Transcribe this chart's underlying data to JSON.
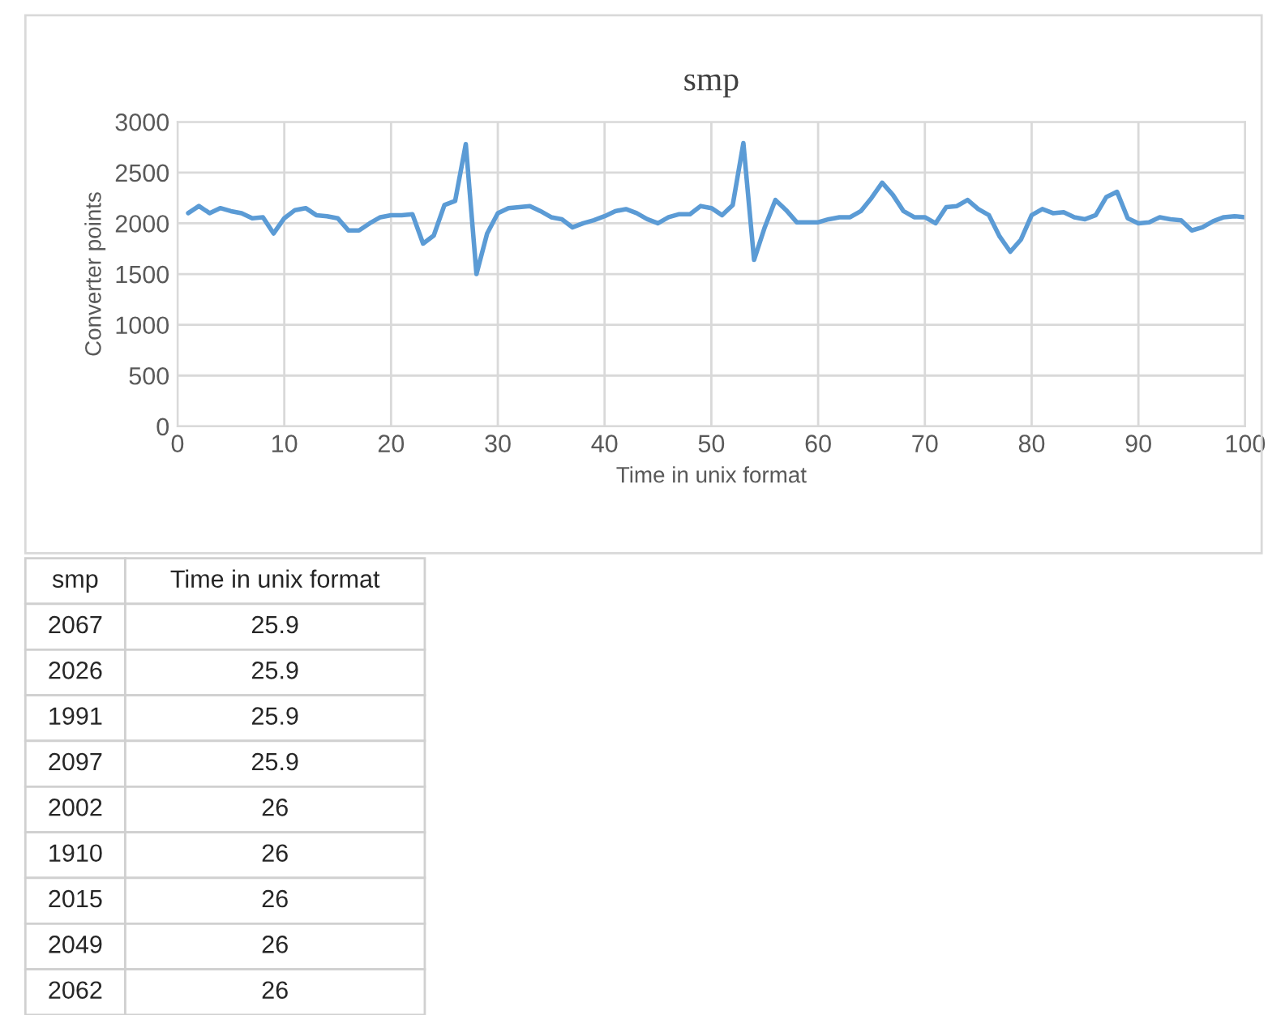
{
  "chart_data": [
    {
      "type": "line",
      "title": "smp",
      "xlabel": "Time in unix format",
      "ylabel": "Converter points",
      "x": [
        1,
        2,
        3,
        4,
        5,
        6,
        7,
        8,
        9,
        10,
        11,
        12,
        13,
        14,
        15,
        16,
        17,
        18,
        19,
        20,
        21,
        22,
        23,
        24,
        25,
        26,
        27,
        28,
        29,
        30,
        31,
        32,
        33,
        34,
        35,
        36,
        37,
        38,
        39,
        40,
        41,
        42,
        43,
        44,
        45,
        46,
        47,
        48,
        49,
        50,
        51,
        52,
        53,
        54,
        55,
        56,
        57,
        58,
        59,
        60,
        61,
        62,
        63,
        64,
        65,
        66,
        67,
        68,
        69,
        70,
        71,
        72,
        73,
        74,
        75,
        76,
        77,
        78,
        79,
        80,
        81,
        82,
        83,
        84,
        85,
        86,
        87,
        88,
        89,
        90,
        91,
        92,
        93,
        94,
        95,
        96,
        97,
        98,
        99,
        100
      ],
      "series": [
        {
          "color": "#5b9bd5",
          "values": [
            2100,
            2170,
            2100,
            2150,
            2120,
            2100,
            2050,
            2060,
            1900,
            2050,
            2130,
            2150,
            2080,
            2070,
            2050,
            1930,
            1930,
            2000,
            2060,
            2080,
            2080,
            2090,
            1800,
            1880,
            2180,
            2220,
            2780,
            1500,
            1900,
            2100,
            2150,
            2160,
            2170,
            2120,
            2060,
            2040,
            1960,
            2000,
            2030,
            2070,
            2120,
            2140,
            2100,
            2040,
            2000,
            2060,
            2090,
            2090,
            2170,
            2150,
            2080,
            2180,
            2790,
            1640,
            1960,
            2230,
            2130,
            2010,
            2010,
            2010,
            2040,
            2060,
            2060,
            2120,
            2250,
            2400,
            2280,
            2120,
            2060,
            2060,
            2000,
            2160,
            2170,
            2230,
            2140,
            2080,
            1870,
            1720,
            1840,
            2080,
            2140,
            2100,
            2110,
            2060,
            2040,
            2080,
            2260,
            2310,
            2050,
            2000,
            2010,
            2060,
            2040,
            2030,
            1930,
            1960,
            2020,
            2060,
            2070,
            2060
          ]
        }
      ],
      "xlim": [
        0,
        100
      ],
      "xticks": [
        0,
        10,
        20,
        30,
        40,
        50,
        60,
        70,
        80,
        90,
        100
      ],
      "ylim": [
        0,
        3000
      ],
      "yticks": [
        0,
        500,
        1000,
        1500,
        2000,
        2500,
        3000
      ],
      "grid": true,
      "line_style": "solid"
    },
    {
      "type": "other",
      "annotations": [
        "smp",
        "Time in unix format",
        "2067",
        "25.9",
        "2026",
        "25.9",
        "1991",
        "25.9",
        "2097",
        "25.9",
        "2002",
        "26",
        "1910",
        "26",
        "2015",
        "26",
        "2049",
        "26",
        "2062",
        "26"
      ]
    }
  ]
}
